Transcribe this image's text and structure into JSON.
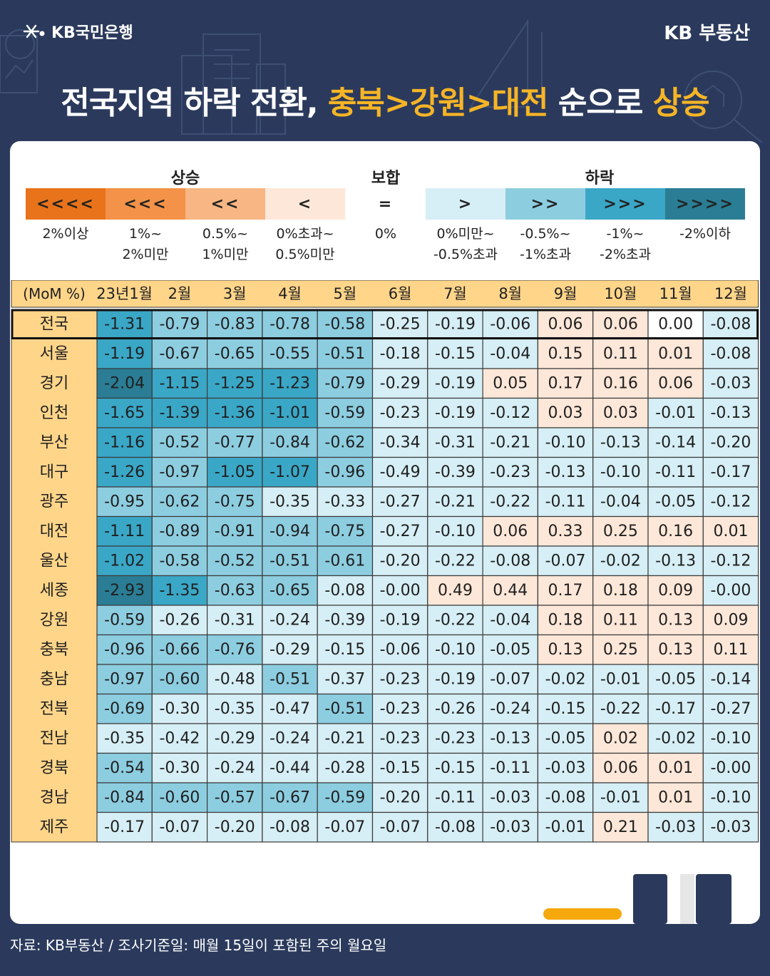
{
  "brand": {
    "bank": "KB국민은행",
    "service": "KB 부동산"
  },
  "headline": {
    "part1": "전국지역 하락 전환, ",
    "part2": "충북>강원>대전",
    "part3": " 순으로 ",
    "part4": "상승"
  },
  "legend": {
    "groups": {
      "rise": "상승",
      "flat": "보합",
      "fall": "하락"
    },
    "cells": [
      {
        "symbol": "<<<<",
        "color": "#e8731a",
        "desc": [
          "2%이상"
        ]
      },
      {
        "symbol": "<<<",
        "color": "#f39248",
        "desc": [
          "1%~",
          "2%미만"
        ]
      },
      {
        "symbol": "<<",
        "color": "#f7b683",
        "desc": [
          "0.5%~",
          "1%미만"
        ]
      },
      {
        "symbol": "<",
        "color": "#fde7d8",
        "desc": [
          "0%초과~",
          "0.5%미만"
        ]
      },
      {
        "symbol": "=",
        "color": "#ffffff",
        "desc": [
          "0%"
        ]
      },
      {
        "symbol": ">",
        "color": "#d6eef5",
        "desc": [
          "0%미만~",
          "-0.5%초과"
        ]
      },
      {
        "symbol": ">>",
        "color": "#8dcde0",
        "desc": [
          "-0.5%~",
          "-1%초과"
        ]
      },
      {
        "symbol": ">>>",
        "color": "#3aa7c7",
        "desc": [
          "-1%~",
          "-2%초과"
        ]
      },
      {
        "symbol": ">>>>",
        "color": "#2a7d94",
        "desc": [
          "-2%이하"
        ]
      }
    ]
  },
  "chart_data": {
    "type": "heatmap",
    "corner_label": "(MoM %)",
    "columns": [
      "23년1월",
      "2월",
      "3월",
      "4월",
      "5월",
      "6월",
      "7월",
      "8월",
      "9월",
      "10월",
      "11월",
      "12월"
    ],
    "rows": [
      {
        "region": "전국",
        "values": [
          "-1.31",
          "-0.79",
          "-0.83",
          "-0.78",
          "-0.58",
          "-0.25",
          "-0.19",
          "-0.06",
          "0.06",
          "0.06",
          "0.00",
          "-0.08"
        ]
      },
      {
        "region": "서울",
        "values": [
          "-1.19",
          "-0.67",
          "-0.65",
          "-0.55",
          "-0.51",
          "-0.18",
          "-0.15",
          "-0.04",
          "0.15",
          "0.11",
          "0.01",
          "-0.08"
        ]
      },
      {
        "region": "경기",
        "values": [
          "-2.04",
          "-1.15",
          "-1.25",
          "-1.23",
          "-0.79",
          "-0.29",
          "-0.19",
          "0.05",
          "0.17",
          "0.16",
          "0.06",
          "-0.03"
        ]
      },
      {
        "region": "인천",
        "values": [
          "-1.65",
          "-1.39",
          "-1.36",
          "-1.01",
          "-0.59",
          "-0.23",
          "-0.19",
          "-0.12",
          "0.03",
          "0.03",
          "-0.01",
          "-0.13"
        ]
      },
      {
        "region": "부산",
        "values": [
          "-1.16",
          "-0.52",
          "-0.77",
          "-0.84",
          "-0.62",
          "-0.34",
          "-0.31",
          "-0.21",
          "-0.10",
          "-0.13",
          "-0.14",
          "-0.20"
        ]
      },
      {
        "region": "대구",
        "values": [
          "-1.26",
          "-0.97",
          "-1.05",
          "-1.07",
          "-0.96",
          "-0.49",
          "-0.39",
          "-0.23",
          "-0.13",
          "-0.10",
          "-0.11",
          "-0.17"
        ]
      },
      {
        "region": "광주",
        "values": [
          "-0.95",
          "-0.62",
          "-0.75",
          "-0.35",
          "-0.33",
          "-0.27",
          "-0.21",
          "-0.22",
          "-0.11",
          "-0.04",
          "-0.05",
          "-0.12"
        ]
      },
      {
        "region": "대전",
        "values": [
          "-1.11",
          "-0.89",
          "-0.91",
          "-0.94",
          "-0.75",
          "-0.27",
          "-0.10",
          "0.06",
          "0.33",
          "0.25",
          "0.16",
          "0.01"
        ]
      },
      {
        "region": "울산",
        "values": [
          "-1.02",
          "-0.58",
          "-0.52",
          "-0.51",
          "-0.61",
          "-0.20",
          "-0.22",
          "-0.08",
          "-0.07",
          "-0.02",
          "-0.13",
          "-0.12"
        ]
      },
      {
        "region": "세종",
        "values": [
          "-2.93",
          "-1.35",
          "-0.63",
          "-0.65",
          "-0.08",
          "-0.00",
          "0.49",
          "0.44",
          "0.17",
          "0.18",
          "0.09",
          "-0.00"
        ]
      },
      {
        "region": "강원",
        "values": [
          "-0.59",
          "-0.26",
          "-0.31",
          "-0.24",
          "-0.39",
          "-0.19",
          "-0.22",
          "-0.04",
          "0.18",
          "0.11",
          "0.13",
          "0.09"
        ]
      },
      {
        "region": "충북",
        "values": [
          "-0.96",
          "-0.66",
          "-0.76",
          "-0.29",
          "-0.15",
          "-0.06",
          "-0.10",
          "-0.05",
          "0.13",
          "0.25",
          "0.13",
          "0.11"
        ]
      },
      {
        "region": "충남",
        "values": [
          "-0.97",
          "-0.60",
          "-0.48",
          "-0.51",
          "-0.37",
          "-0.23",
          "-0.19",
          "-0.07",
          "-0.02",
          "-0.01",
          "-0.05",
          "-0.14"
        ]
      },
      {
        "region": "전북",
        "values": [
          "-0.69",
          "-0.30",
          "-0.35",
          "-0.47",
          "-0.51",
          "-0.23",
          "-0.26",
          "-0.24",
          "-0.15",
          "-0.22",
          "-0.17",
          "-0.27"
        ]
      },
      {
        "region": "전남",
        "values": [
          "-0.35",
          "-0.42",
          "-0.29",
          "-0.24",
          "-0.21",
          "-0.23",
          "-0.23",
          "-0.13",
          "-0.05",
          "0.02",
          "-0.02",
          "-0.10"
        ]
      },
      {
        "region": "경북",
        "values": [
          "-0.54",
          "-0.30",
          "-0.24",
          "-0.44",
          "-0.28",
          "-0.15",
          "-0.15",
          "-0.11",
          "-0.03",
          "0.06",
          "0.01",
          "-0.00"
        ]
      },
      {
        "region": "경남",
        "values": [
          "-0.84",
          "-0.60",
          "-0.57",
          "-0.67",
          "-0.59",
          "-0.20",
          "-0.11",
          "-0.03",
          "-0.08",
          "-0.01",
          "0.01",
          "-0.10"
        ]
      },
      {
        "region": "제주",
        "values": [
          "-0.17",
          "-0.07",
          "-0.20",
          "-0.08",
          "-0.07",
          "-0.07",
          "-0.08",
          "-0.03",
          "-0.01",
          "0.21",
          "-0.03",
          "-0.03"
        ]
      }
    ]
  },
  "footer": {
    "source": "자료: KB부동산 / 조사기준일: 매월 15일이 포함된 주의 월요일"
  }
}
